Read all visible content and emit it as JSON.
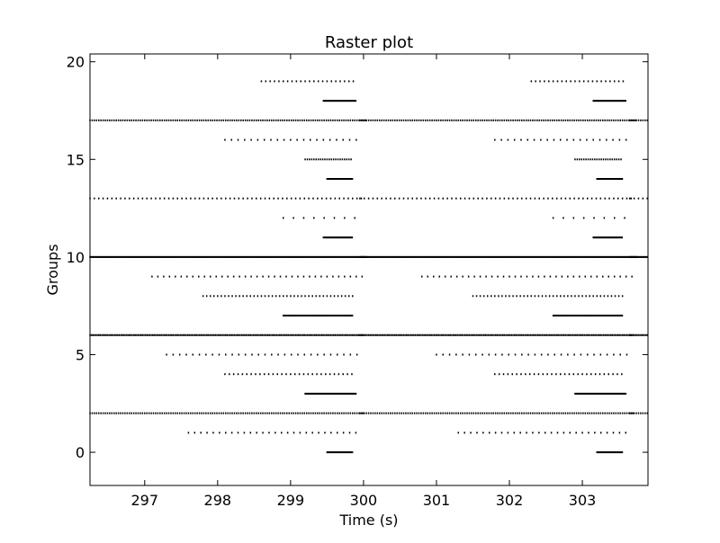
{
  "chart_data": {
    "type": "scatter",
    "title": "Raster plot",
    "xlabel": "Time (s)",
    "ylabel": "Groups",
    "xlim": [
      296.25,
      303.9
    ],
    "ylim": [
      -1.7,
      20.4
    ],
    "xticks": [
      297,
      298,
      299,
      300,
      301,
      302,
      303
    ],
    "yticks": [
      0,
      5,
      10,
      15,
      20
    ],
    "grid": false,
    "legend": "none",
    "marker_color": "#000000",
    "period_s": 3.7,
    "series": [
      {
        "group": 0,
        "start": 299.5,
        "end": 299.85,
        "spacing": 0.012
      },
      {
        "group": 1,
        "start": 297.6,
        "end": 299.9,
        "spacing": 0.085
      },
      {
        "group": 2,
        "start": 296.25,
        "end": 300.0,
        "spacing": 0.03
      },
      {
        "group": 3,
        "start": 299.2,
        "end": 299.9,
        "spacing": 0.012
      },
      {
        "group": 4,
        "start": 298.1,
        "end": 299.9,
        "spacing": 0.06
      },
      {
        "group": 5,
        "start": 297.3,
        "end": 299.95,
        "spacing": 0.09
      },
      {
        "group": 6,
        "start": 296.25,
        "end": 300.0,
        "spacing": 0.02
      },
      {
        "group": 7,
        "start": 298.9,
        "end": 299.85,
        "spacing": 0.012
      },
      {
        "group": 8,
        "start": 297.8,
        "end": 299.9,
        "spacing": 0.05
      },
      {
        "group": 9,
        "start": 297.1,
        "end": 300.0,
        "spacing": 0.08
      },
      {
        "group": 10,
        "start": 296.25,
        "end": 300.05,
        "spacing": 0.012
      },
      {
        "group": 11,
        "start": 299.45,
        "end": 299.85,
        "spacing": 0.012
      },
      {
        "group": 12,
        "start": 298.9,
        "end": 299.9,
        "spacing": 0.14
      },
      {
        "group": 13,
        "start": 296.25,
        "end": 300.0,
        "spacing": 0.06
      },
      {
        "group": 14,
        "start": 299.5,
        "end": 299.85,
        "spacing": 0.012
      },
      {
        "group": 15,
        "start": 299.2,
        "end": 299.85,
        "spacing": 0.03
      },
      {
        "group": 16,
        "start": 298.1,
        "end": 299.9,
        "spacing": 0.09
      },
      {
        "group": 17,
        "start": 296.25,
        "end": 300.05,
        "spacing": 0.03
      },
      {
        "group": 18,
        "start": 299.45,
        "end": 299.9,
        "spacing": 0.012
      },
      {
        "group": 19,
        "start": 298.6,
        "end": 299.9,
        "spacing": 0.06
      }
    ]
  }
}
